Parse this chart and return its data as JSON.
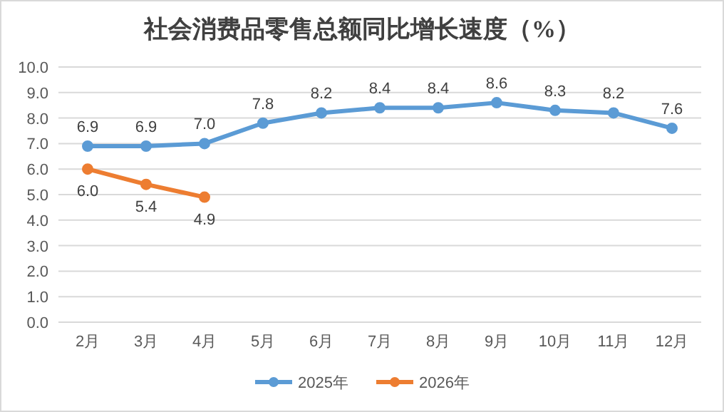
{
  "chart_data": {
    "type": "line",
    "title": "社会消费品零售总额同比增长速度（%）",
    "categories": [
      "2月",
      "3月",
      "4月",
      "5月",
      "6月",
      "7月",
      "8月",
      "9月",
      "10月",
      "11月",
      "12月"
    ],
    "series": [
      {
        "name": "2025年",
        "color": "#5b9bd5",
        "values": [
          6.9,
          6.9,
          7.0,
          7.8,
          8.2,
          8.4,
          8.4,
          8.6,
          8.3,
          8.2,
          7.6
        ],
        "value_labels": [
          "6.9",
          "6.9",
          "7.0",
          "7.8",
          "8.2",
          "8.4",
          "8.4",
          "8.6",
          "8.3",
          "8.2",
          "7.6"
        ]
      },
      {
        "name": "2026年",
        "color": "#ed7d31",
        "values": [
          6.0,
          5.4,
          4.9,
          null,
          null,
          null,
          null,
          null,
          null,
          null,
          null
        ],
        "value_labels": [
          "6.0",
          "5.4",
          "4.9",
          null,
          null,
          null,
          null,
          null,
          null,
          null,
          null
        ]
      }
    ],
    "ylim": [
      0,
      10
    ],
    "yticks": [
      {
        "value": 0,
        "label": "0.0"
      },
      {
        "value": 1,
        "label": "1.0"
      },
      {
        "value": 2,
        "label": "2.0"
      },
      {
        "value": 3,
        "label": "3.0"
      },
      {
        "value": 4,
        "label": "4.0"
      },
      {
        "value": 5,
        "label": "5.0"
      },
      {
        "value": 6,
        "label": "6.0"
      },
      {
        "value": 7,
        "label": "7.0"
      },
      {
        "value": 8,
        "label": "8.0"
      },
      {
        "value": 9,
        "label": "9.0"
      },
      {
        "value": 10,
        "label": "10.0"
      }
    ],
    "grid": "y",
    "legend": "bottom",
    "marker": "circle",
    "line_style": "solid"
  }
}
